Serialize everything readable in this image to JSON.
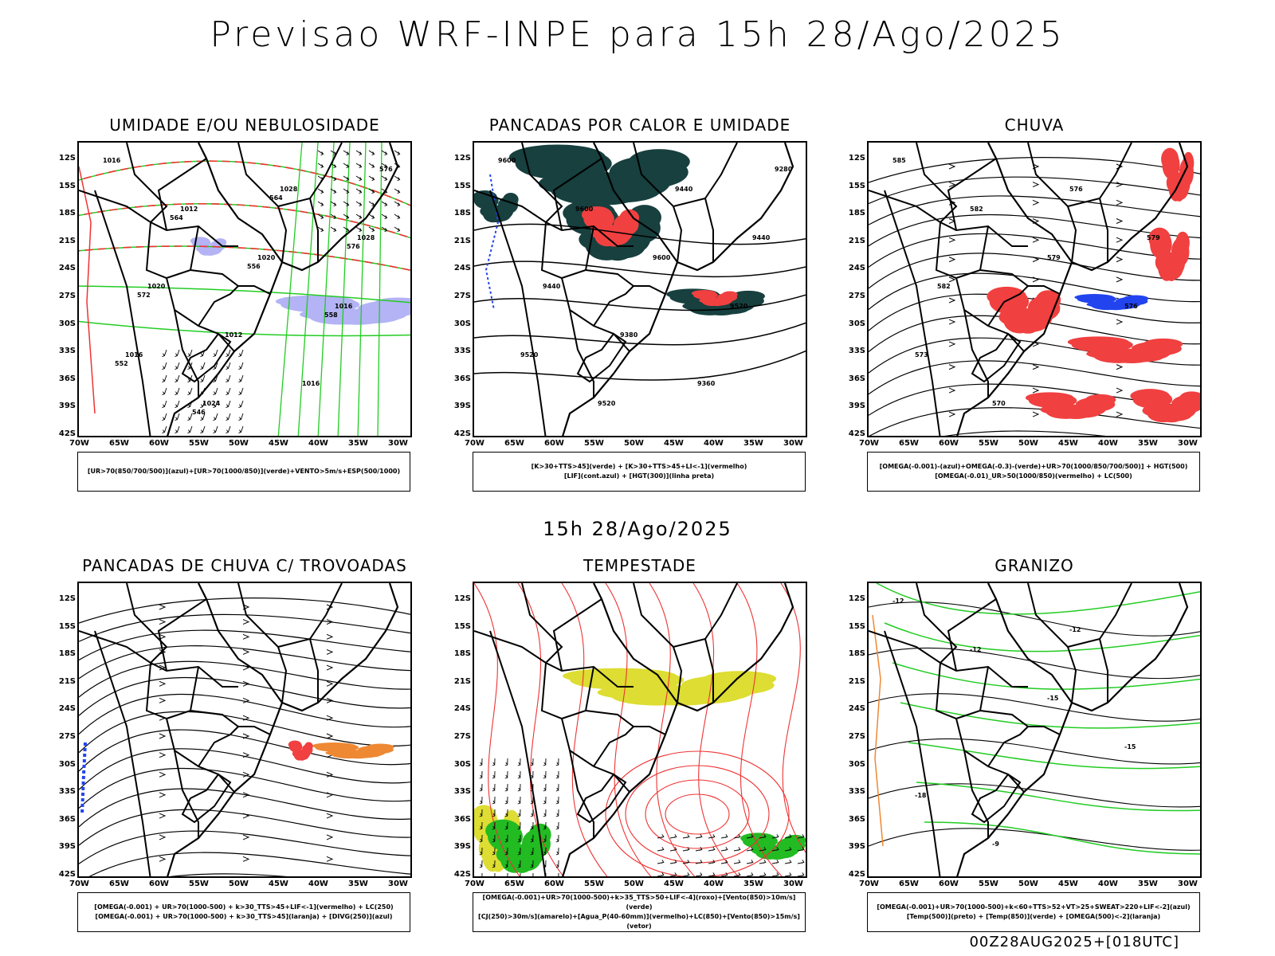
{
  "main_title": "Previsao WRF-INPE  para 15h 28/Ago/2025",
  "mid_title": "15h 28/Ago/2025",
  "footer": "00Z28AUG2025+[018UTC]",
  "lat_labels": [
    "12S",
    "15S",
    "18S",
    "21S",
    "24S",
    "27S",
    "30S",
    "33S",
    "36S",
    "39S",
    "42S"
  ],
  "lon_labels": [
    "70W",
    "65W",
    "60W",
    "55W",
    "50W",
    "45W",
    "40W",
    "35W",
    "30W"
  ],
  "colors": {
    "humidity_blue": "#b3b3f5",
    "green_contour": "#22cc22",
    "red_contour": "#ee3333",
    "dark_teal": "#17403f",
    "rain_red": "#f04040",
    "thunder_orange": "#ee8833",
    "storm_yellow": "#dddd33",
    "storm_green": "#22bb22",
    "blue_marks": "#2244ee"
  },
  "panels": [
    {
      "title": "UMIDADE E/OU NEBULOSIDADE",
      "legend": [
        "[UR>70(850/700/500)](azul)+[UR>70(1000/850)](verde)+VENTO>5m/s+ESP(500/1000)"
      ],
      "contour_labels": [
        "1016",
        "1012",
        "1020",
        "1016",
        "1016",
        "1024",
        "1028",
        "1028",
        "1020",
        "1012",
        "1016",
        "576",
        "564",
        "556",
        "558",
        "552",
        "546",
        "564",
        "576",
        "572"
      ]
    },
    {
      "title": "PANCADAS POR CALOR E UMIDADE",
      "legend": [
        "[K>30+TTS>45](verde) + [K>30+TTS>45+LI<-1](vermelho)",
        "[LIF](cont.azul) + [HGT(300)](linha preta)"
      ],
      "contour_labels": [
        "9600",
        "9600",
        "9600",
        "9520",
        "9520",
        "9520",
        "9440",
        "9440",
        "9440",
        "9380",
        "9360",
        "9280"
      ]
    },
    {
      "title": "CHUVA",
      "legend": [
        "[OMEGA(-0.001)-(azul)+OMEGA(-0.3)-(verde)+UR>70(1000/850/700/500)] + HGT(500)",
        "[OMEGA(-0.01)_UR>50(1000/850)(vermelho) + LC(500)"
      ],
      "contour_labels": [
        "585",
        "582",
        "579",
        "576",
        "573",
        "570",
        "576",
        "579",
        "582"
      ]
    },
    {
      "title": "PANCADAS DE CHUVA C/ TROVOADAS",
      "legend": [
        "[OMEGA(-0.001) + UR>70(1000-500) + k>30_TTS>45+LIF<-1](vermelho) + LC(250)",
        "[OMEGA(-0.001) + UR>70(1000-500) + k>30_TTS>45](laranja) + [DIVG(250)](azul)"
      ]
    },
    {
      "title": "TEMPESTADE",
      "legend": [
        "[OMEGA(-0.001)+UR>70(1000-500)+k>35_TTS>50+LIF<-4](roxo)+[Vento(850)>10m/s](verde)",
        "[CJ(250)>30m/s](amarelo)+[Agua_P(40-60mm)](vermelho)+LC(850)+[Vento(850)>15m/s](vetor)"
      ]
    },
    {
      "title": "GRANIZO",
      "legend": [
        "[OMEGA(-0.001)+UR>70(1000-500)+k<60+TTS>52+VT>25+SWEAT>220+LIF<-2](azul)",
        "[Temp(500)](preto) + [Temp(850)](verde) + [OMEGA(500)<-2](laranja)"
      ],
      "contour_labels": [
        "-12",
        "-12",
        "-15",
        "-15",
        "-18",
        "-9",
        "-12"
      ]
    }
  ]
}
